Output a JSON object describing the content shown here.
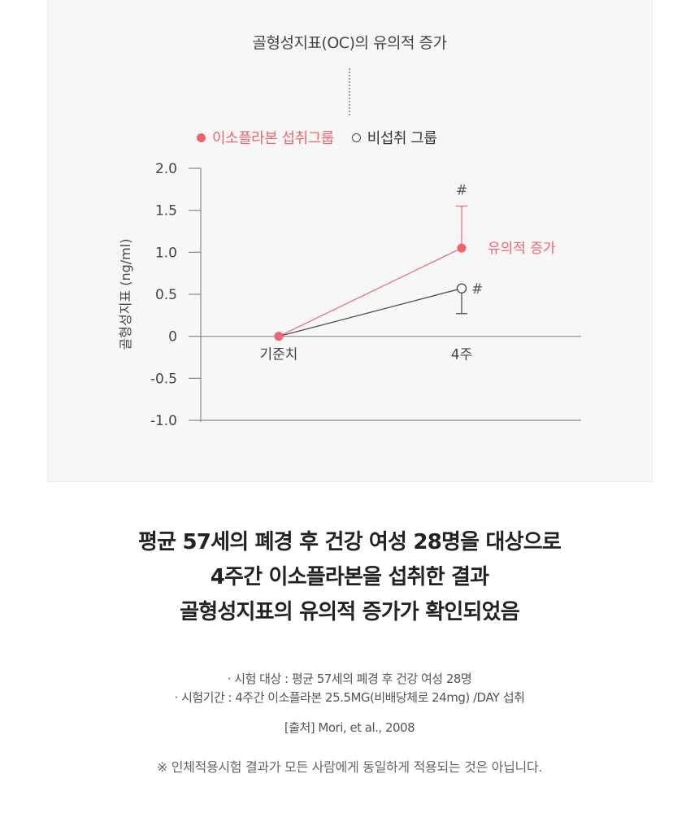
{
  "colors": {
    "accent": "#ee6472",
    "control": "#444444",
    "panel": "#f7f7f7"
  },
  "chart_data": {
    "type": "line",
    "title": "골형성지표(OC)의 유의적 증가",
    "ylabel": "골형성지표 (ng/ml)",
    "xlabel": "",
    "categories": [
      "기준치",
      "4주"
    ],
    "ylim": [
      -1.0,
      2.0
    ],
    "yticks": [
      "2.0",
      "1.5",
      "1.0",
      "0.5",
      "0",
      "-0.5",
      "-1.0"
    ],
    "ytick_values": [
      2.0,
      1.5,
      1.0,
      0.5,
      0,
      -0.5,
      -1.0
    ],
    "grid": false,
    "legend_position": "top",
    "series": [
      {
        "name": "이소플라본 섭취그룹",
        "values": [
          0,
          1.05
        ],
        "error_upper": [
          0,
          0.5
        ],
        "marker": "filled",
        "color": "#ee6472",
        "annotation": "#"
      },
      {
        "name": "비섭취 그룹",
        "values": [
          0,
          0.57
        ],
        "error_lower": [
          0,
          0.3
        ],
        "marker": "hollow",
        "color": "#444444",
        "annotation": "#"
      }
    ],
    "annotations": [
      {
        "text": "유의적 증가",
        "series": 0,
        "category": "4주"
      }
    ]
  },
  "headline": {
    "line1": "평균 57세의 폐경 후 건강 여성 28명을 대상으로",
    "line2": "4주간 이소플라본을 섭취한 결과",
    "line3": "골형성지표의 유의적 증가가 확인되었음"
  },
  "notes": {
    "subject": "· 시험 대상 : 평균 57세의 폐경 후 건강 여성 28명",
    "period": "· 시험기간 : 4주간 이소플라본 25.5MG(비배당체로 24mg) /DAY 섭취"
  },
  "source": "[출처] Mori, et al., 2008",
  "disclaimer": "※ 인체적용시험 결과가 모든 사람에게 동일하게 적용되는 것은 아닙니다."
}
